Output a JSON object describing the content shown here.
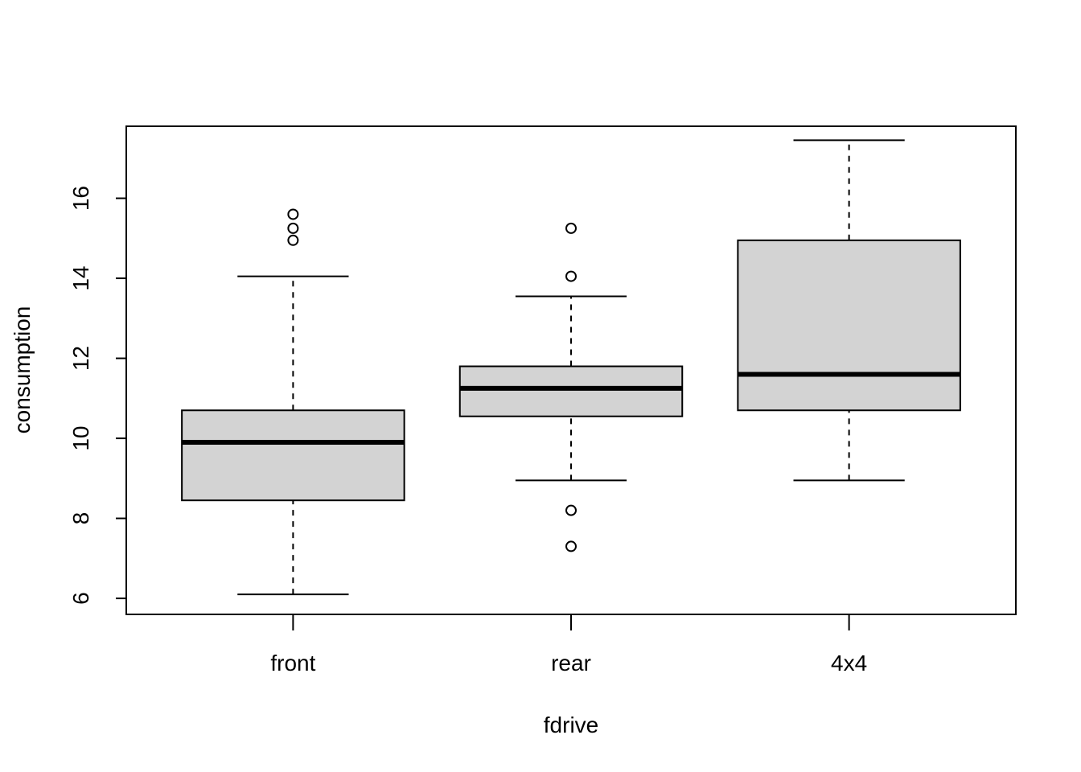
{
  "chart_data": {
    "type": "boxplot",
    "xlabel": "fdrive",
    "ylabel": "consumption",
    "ylim": [
      5.6,
      17.8
    ],
    "yticks": [
      6,
      8,
      10,
      12,
      14,
      16
    ],
    "categories": [
      "front",
      "rear",
      "4x4"
    ],
    "boxes": [
      {
        "category": "front",
        "whisker_low": 6.1,
        "q1": 8.45,
        "median": 9.9,
        "q3": 10.7,
        "whisker_high": 14.05,
        "outliers": [
          14.95,
          15.25,
          15.6
        ]
      },
      {
        "category": "rear",
        "whisker_low": 8.95,
        "q1": 10.55,
        "median": 11.25,
        "q3": 11.8,
        "whisker_high": 13.55,
        "outliers": [
          7.3,
          8.2,
          14.05,
          15.25
        ]
      },
      {
        "category": "4x4",
        "whisker_low": 8.95,
        "q1": 10.7,
        "median": 11.6,
        "q3": 14.95,
        "whisker_high": 17.45,
        "outliers": []
      }
    ],
    "colors": {
      "box_fill": "#d3d3d3",
      "stroke": "#000000"
    },
    "grid": false,
    "legend": "none"
  }
}
